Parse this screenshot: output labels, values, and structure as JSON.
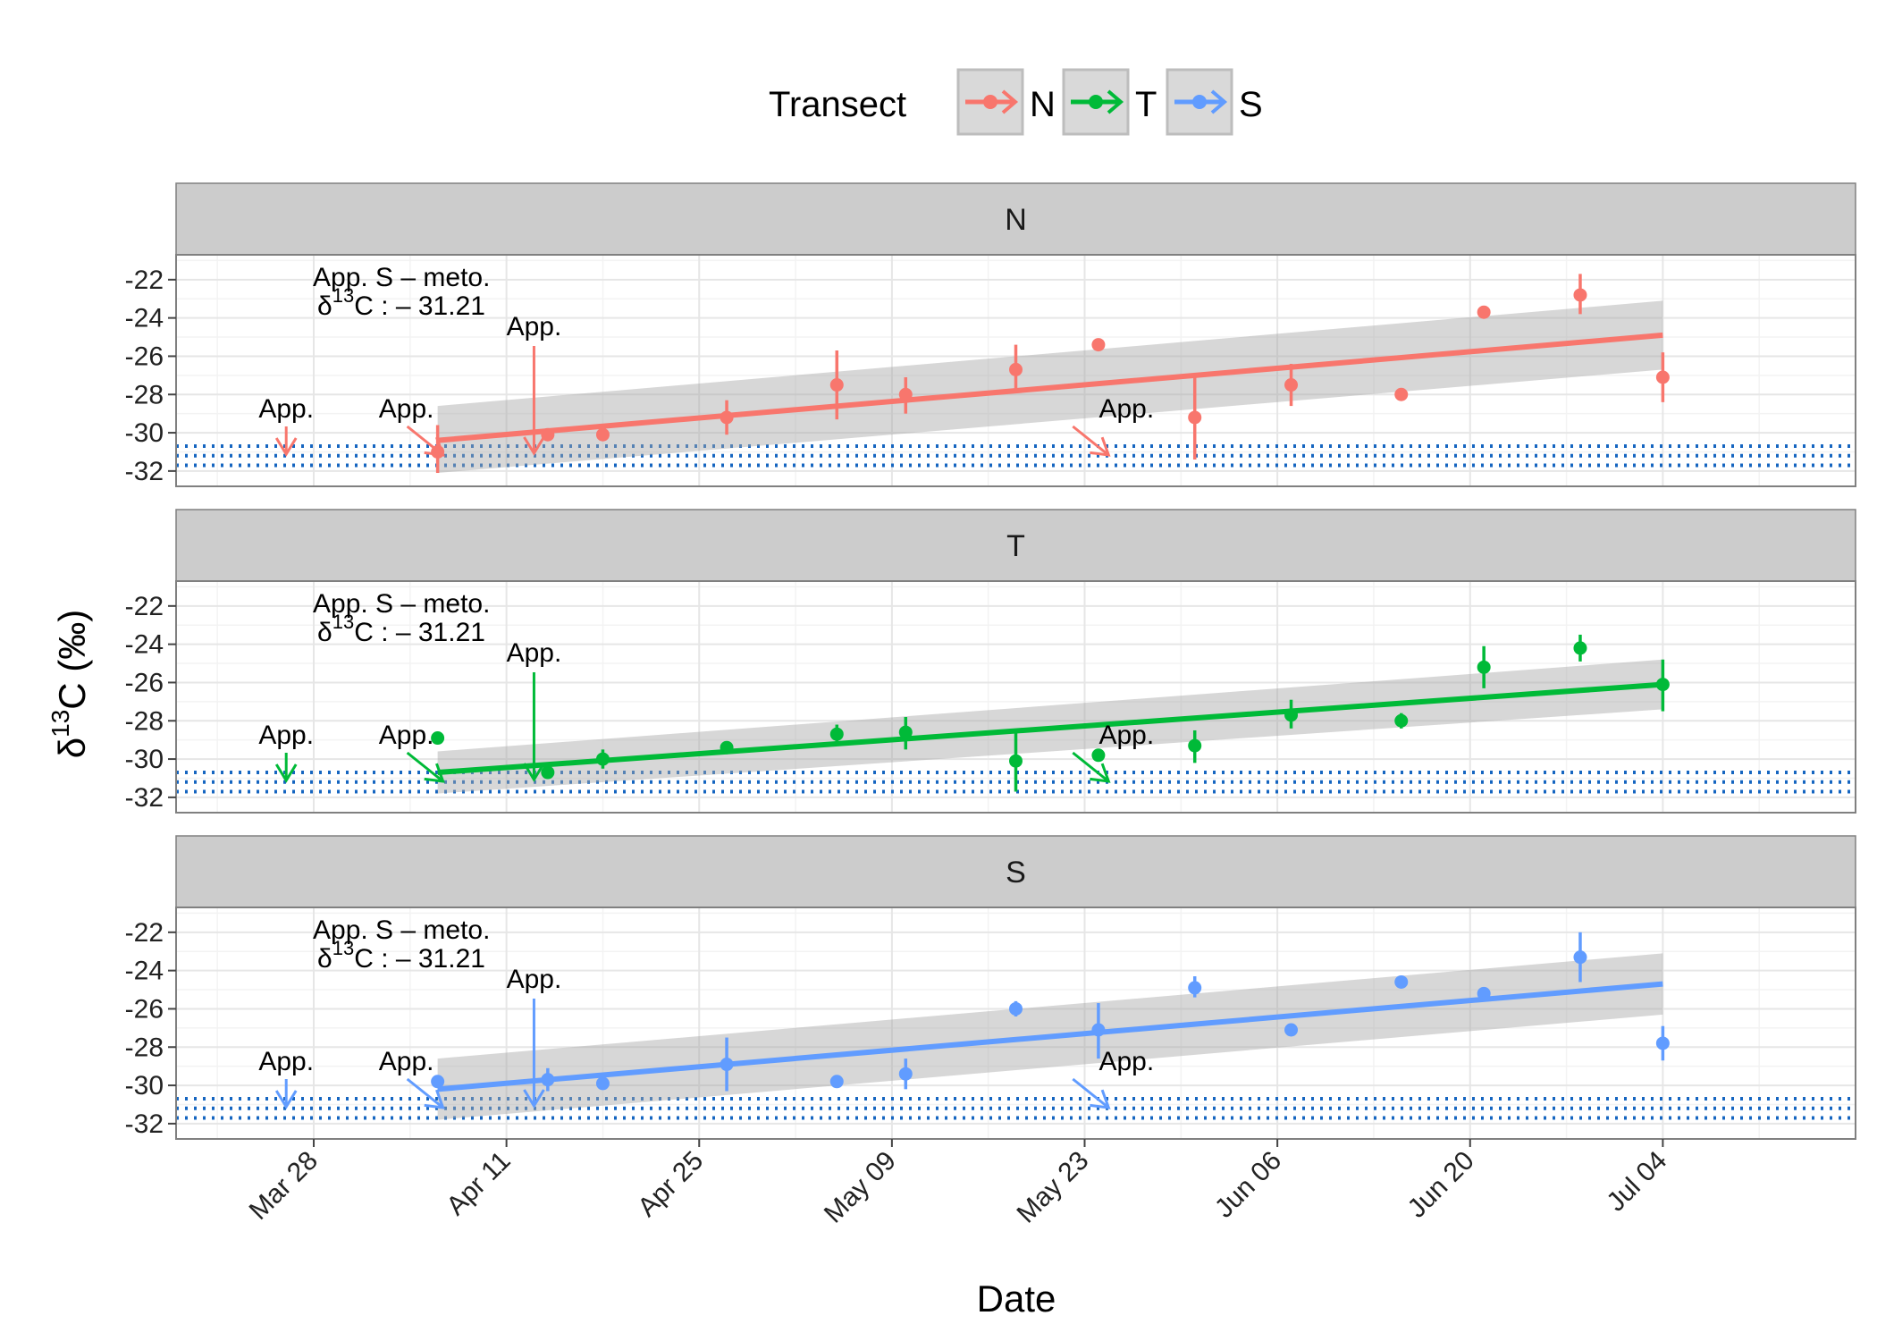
{
  "chart_data": {
    "type": "scatter",
    "xlabel": "Date",
    "ylabel": "δ13C (‰)",
    "ylabel_parts": {
      "base": "δ",
      "sup": "13",
      "rest": "C (‰)"
    },
    "legend": {
      "title": "Transect",
      "placement": "top"
    },
    "x_axis": {
      "kind": "date",
      "ticks": [
        "2015-03-28",
        "2015-04-11",
        "2015-04-25",
        "2015-05-09",
        "2015-05-23",
        "2015-06-06",
        "2015-06-20",
        "2015-07-04"
      ],
      "tick_labels": [
        "Mar 28",
        "Apr 11",
        "Apr 25",
        "May 09",
        "May 23",
        "Jun 06",
        "Jun 20",
        "Jul 04"
      ],
      "range": [
        "2015-03-18",
        "2015-07-18"
      ]
    },
    "y_axis": {
      "ticks": [
        -22,
        -24,
        -26,
        -28,
        -30,
        -32
      ],
      "range": [
        -32.8,
        -20.7
      ]
    },
    "reference_band": {
      "lower": -31.7,
      "upper": -30.7,
      "style": "dotted",
      "color": "#1565C0"
    },
    "annotations": {
      "sample_label_line1": "App. S – meto.",
      "sample_label_line2_base": "δ",
      "sample_label_line2_sup": "13",
      "sample_label_line2_rest": "C : – 31.21",
      "arrow_label": "App."
    },
    "arrows": [
      {
        "date": "2015-03-26",
        "kind": "short"
      },
      {
        "date": "2015-04-06",
        "kind": "diag"
      },
      {
        "date": "2015-04-13",
        "kind": "long"
      },
      {
        "date": "2015-05-25",
        "kind": "diag"
      }
    ],
    "panels": [
      {
        "name": "N",
        "color": "#F8766D",
        "trend": {
          "start": [
            "2015-04-06",
            -30.4
          ],
          "end": [
            "2015-07-04",
            -24.9
          ],
          "ci": [
            [
              -32.1,
              -28.6
            ],
            [
              -26.7,
              -23.1
            ]
          ]
        },
        "points": [
          {
            "x": "2015-04-06",
            "y": -31.0,
            "ymin": -32.1,
            "ymax": -29.6
          },
          {
            "x": "2015-04-14",
            "y": -30.1,
            "ymin": -30.4,
            "ymax": -29.8
          },
          {
            "x": "2015-04-18",
            "y": -30.1,
            "ymin": -30.4,
            "ymax": -29.8
          },
          {
            "x": "2015-04-27",
            "y": -29.2,
            "ymin": -30.1,
            "ymax": -28.3
          },
          {
            "x": "2015-05-05",
            "y": -27.5,
            "ymin": -29.3,
            "ymax": -25.7
          },
          {
            "x": "2015-05-10",
            "y": -28.0,
            "ymin": -29.0,
            "ymax": -27.1
          },
          {
            "x": "2015-05-18",
            "y": -26.7,
            "ymin": -27.9,
            "ymax": -25.4
          },
          {
            "x": "2015-05-24",
            "y": -25.4,
            "ymin": -25.6,
            "ymax": -25.2
          },
          {
            "x": "2015-05-31",
            "y": -29.2,
            "ymin": -31.4,
            "ymax": -27.0
          },
          {
            "x": "2015-06-07",
            "y": -27.5,
            "ymin": -28.6,
            "ymax": -26.4
          },
          {
            "x": "2015-06-15",
            "y": -28.0,
            "ymin": -28.2,
            "ymax": -27.8
          },
          {
            "x": "2015-06-21",
            "y": -23.7,
            "ymin": -23.9,
            "ymax": -23.5
          },
          {
            "x": "2015-06-28",
            "y": -22.8,
            "ymin": -23.8,
            "ymax": -21.7
          },
          {
            "x": "2015-07-04",
            "y": -27.1,
            "ymin": -28.4,
            "ymax": -25.8
          }
        ]
      },
      {
        "name": "T",
        "color": "#00BA38",
        "trend": {
          "start": [
            "2015-04-06",
            -30.7
          ],
          "end": [
            "2015-07-04",
            -26.1
          ],
          "ci": [
            [
              -31.8,
              -29.6
            ],
            [
              -27.4,
              -24.8
            ]
          ]
        },
        "points": [
          {
            "x": "2015-04-06",
            "y": -28.9,
            "ymin": -29.2,
            "ymax": -28.6
          },
          {
            "x": "2015-04-14",
            "y": -30.7,
            "ymin": -31.0,
            "ymax": -30.4
          },
          {
            "x": "2015-04-18",
            "y": -30.0,
            "ymin": -30.5,
            "ymax": -29.5
          },
          {
            "x": "2015-04-27",
            "y": -29.4,
            "ymin": -29.6,
            "ymax": -29.2
          },
          {
            "x": "2015-05-05",
            "y": -28.7,
            "ymin": -29.2,
            "ymax": -28.2
          },
          {
            "x": "2015-05-10",
            "y": -28.6,
            "ymin": -29.5,
            "ymax": -27.8
          },
          {
            "x": "2015-05-18",
            "y": -30.1,
            "ymin": -31.7,
            "ymax": -28.6
          },
          {
            "x": "2015-05-24",
            "y": -29.8,
            "ymin": -30.1,
            "ymax": -29.5
          },
          {
            "x": "2015-05-31",
            "y": -29.3,
            "ymin": -30.2,
            "ymax": -28.5
          },
          {
            "x": "2015-06-07",
            "y": -27.7,
            "ymin": -28.4,
            "ymax": -26.9
          },
          {
            "x": "2015-06-15",
            "y": -28.0,
            "ymin": -28.4,
            "ymax": -27.6
          },
          {
            "x": "2015-06-21",
            "y": -25.2,
            "ymin": -26.3,
            "ymax": -24.1
          },
          {
            "x": "2015-06-28",
            "y": -24.2,
            "ymin": -24.9,
            "ymax": -23.5
          },
          {
            "x": "2015-07-04",
            "y": -26.1,
            "ymin": -27.5,
            "ymax": -24.8
          }
        ]
      },
      {
        "name": "S",
        "color": "#619CFF",
        "trend": {
          "start": [
            "2015-04-06",
            -30.2
          ],
          "end": [
            "2015-07-04",
            -24.7
          ],
          "ci": [
            [
              -31.8,
              -28.6
            ],
            [
              -26.3,
              -23.1
            ]
          ]
        },
        "points": [
          {
            "x": "2015-04-06",
            "y": -29.8,
            "ymin": -30.0,
            "ymax": -29.6
          },
          {
            "x": "2015-04-14",
            "y": -29.7,
            "ymin": -30.3,
            "ymax": -29.1
          },
          {
            "x": "2015-04-18",
            "y": -29.9,
            "ymin": -30.2,
            "ymax": -29.6
          },
          {
            "x": "2015-04-27",
            "y": -28.9,
            "ymin": -30.3,
            "ymax": -27.5
          },
          {
            "x": "2015-05-05",
            "y": -29.8,
            "ymin": -30.0,
            "ymax": -29.6
          },
          {
            "x": "2015-05-10",
            "y": -29.4,
            "ymin": -30.2,
            "ymax": -28.6
          },
          {
            "x": "2015-05-18",
            "y": -26.0,
            "ymin": -26.4,
            "ymax": -25.6
          },
          {
            "x": "2015-05-24",
            "y": -27.1,
            "ymin": -28.6,
            "ymax": -25.7
          },
          {
            "x": "2015-05-31",
            "y": -24.9,
            "ymin": -25.4,
            "ymax": -24.3
          },
          {
            "x": "2015-06-07",
            "y": -27.1,
            "ymin": -27.3,
            "ymax": -26.9
          },
          {
            "x": "2015-06-15",
            "y": -24.6,
            "ymin": -24.8,
            "ymax": -24.4
          },
          {
            "x": "2015-06-21",
            "y": -25.2,
            "ymin": -25.4,
            "ymax": -25.0
          },
          {
            "x": "2015-06-28",
            "y": -23.3,
            "ymin": -24.6,
            "ymax": -22.0
          },
          {
            "x": "2015-07-04",
            "y": -27.8,
            "ymin": -28.7,
            "ymax": -26.9
          }
        ]
      }
    ]
  }
}
